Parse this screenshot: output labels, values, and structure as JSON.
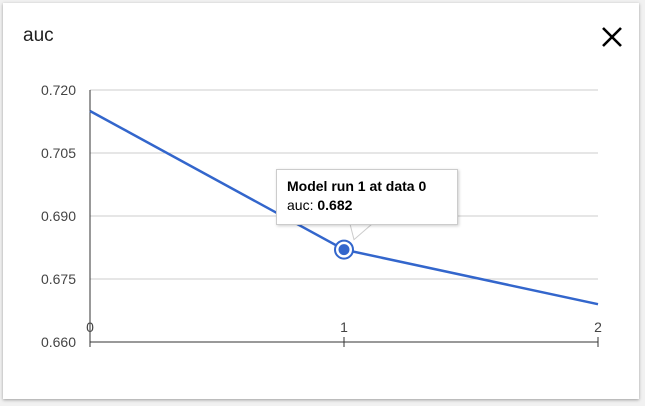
{
  "card": {
    "title": "auc",
    "close_icon": "close-icon"
  },
  "chart_data": {
    "type": "line",
    "title": "auc",
    "x": [
      0,
      1,
      2
    ],
    "values": [
      0.715,
      0.682,
      0.669
    ],
    "xlim": [
      0,
      2
    ],
    "ylim": [
      0.66,
      0.72
    ],
    "x_ticks": [
      "0",
      "1",
      "2"
    ],
    "y_ticks": [
      "0.720",
      "0.705",
      "0.690",
      "0.675",
      "0.660"
    ],
    "grid": true,
    "line_color": "#3366cc",
    "highlighted_index": 1
  },
  "tooltip": {
    "heading": "Model run 1 at data 0",
    "label": "auc:",
    "value": "0.682"
  }
}
